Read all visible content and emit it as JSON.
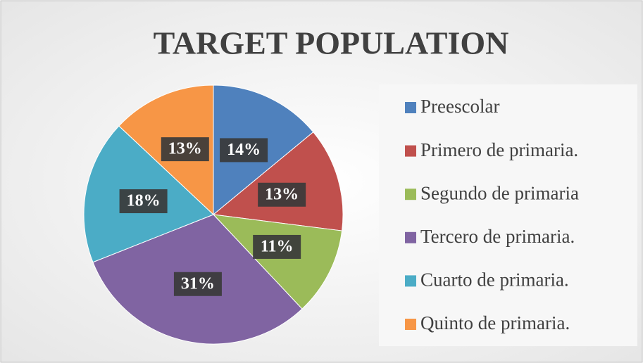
{
  "chart_data": {
    "type": "pie",
    "title": "TARGET POPULATION",
    "categories": [
      "Preescolar",
      "Primero de primaria.",
      "Segundo de primaria",
      "Tercero de primaria.",
      "Cuarto de primaria.",
      "Quinto de primaria."
    ],
    "values": [
      14,
      13,
      11,
      31,
      18,
      13
    ],
    "value_labels": [
      "14%",
      "13%",
      "11%",
      "31%",
      "18%",
      "13%"
    ],
    "colors": [
      "#4f81bd",
      "#c0504d",
      "#9bbb59",
      "#8064a2",
      "#4bacc6",
      "#f79646"
    ],
    "legend": "right"
  }
}
